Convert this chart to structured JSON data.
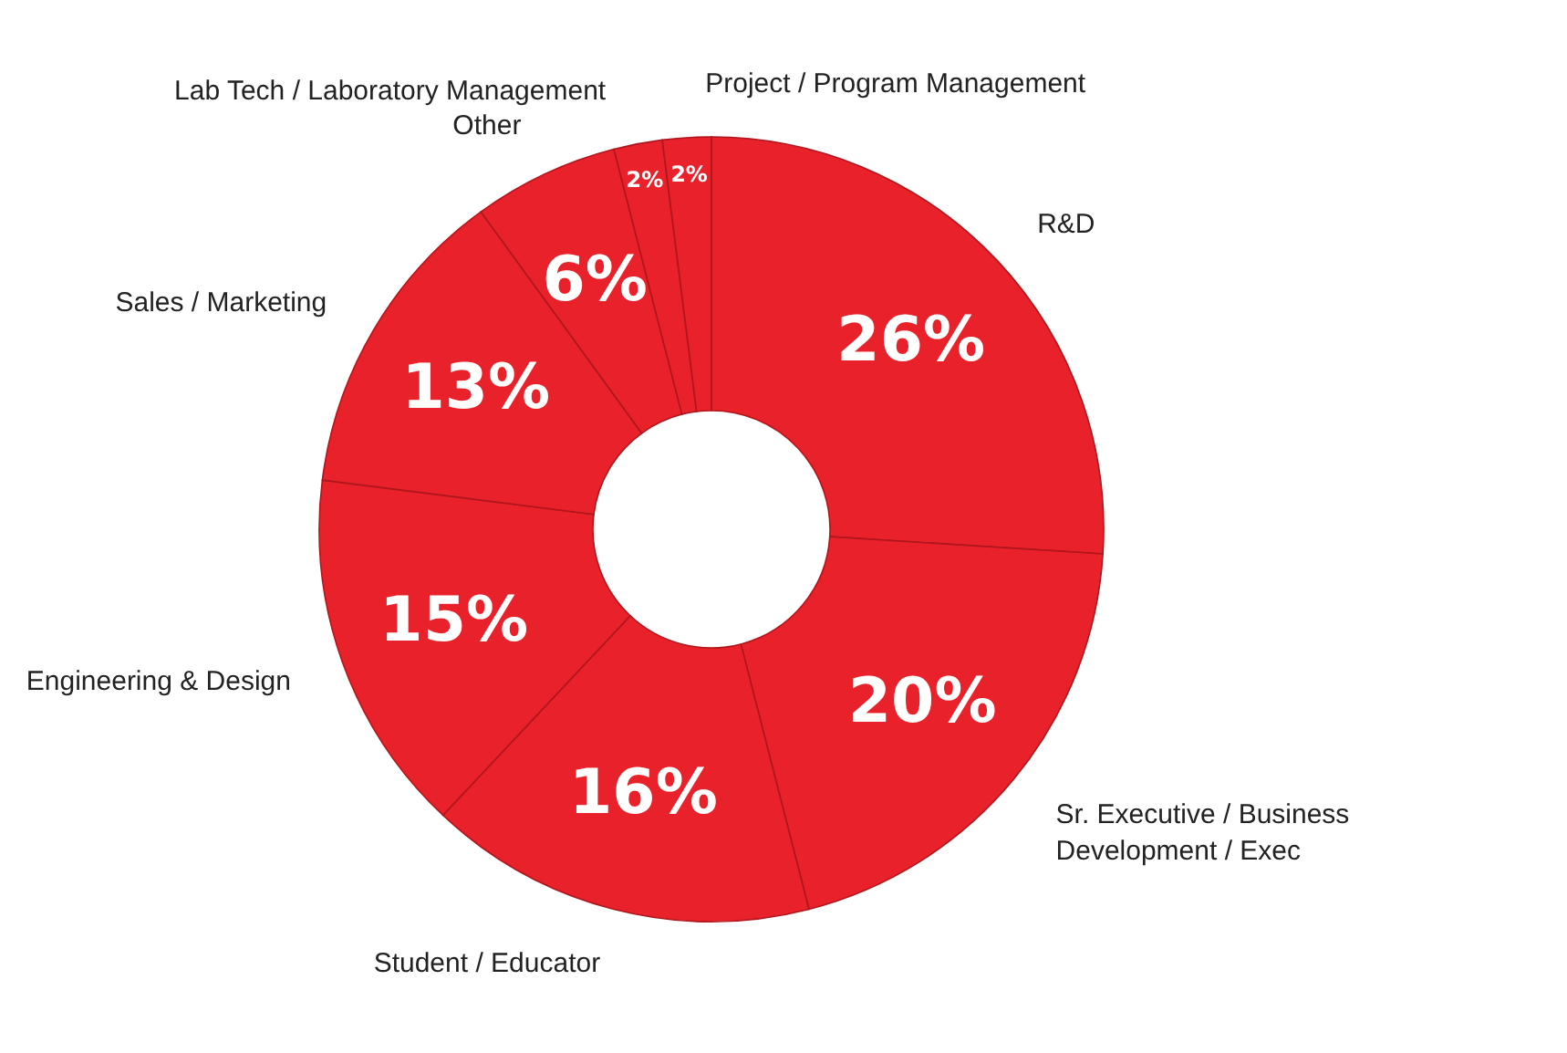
{
  "chart_data": {
    "type": "donut",
    "categories": [
      "R&D",
      "Sr. Executive / Business Development / Exec",
      "Student / Educator",
      "Engineering & Design",
      "Sales / Marketing",
      "Other",
      "Lab Tech / Laboratory Management",
      "Project / Program Management"
    ],
    "values": [
      26,
      20,
      16,
      15,
      13,
      6,
      2,
      2
    ],
    "value_labels": [
      "26%",
      "20%",
      "16%",
      "15%",
      "13%",
      "6%",
      "2%",
      "2%"
    ],
    "colors": [
      "#e8212a",
      "#e8212a",
      "#e8212a",
      "#e8212a",
      "#e8212a",
      "#e8212a",
      "#e8212a",
      "#e8212a"
    ],
    "legend": false
  }
}
